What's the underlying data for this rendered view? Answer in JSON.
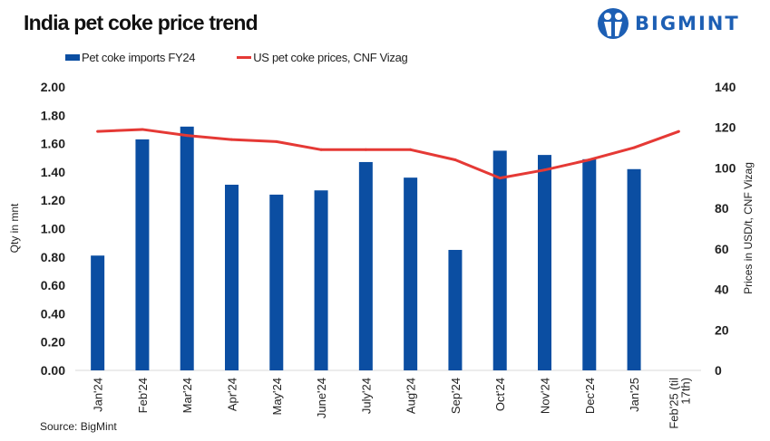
{
  "chart_data": {
    "type": "bar+line",
    "title": "India pet coke price trend",
    "categories": [
      "Jan'24",
      "Feb'24",
      "Mar'24",
      "Apr'24",
      "May'24",
      "June'24",
      "July'24",
      "Aug'24",
      "Sep'24",
      "Oct'24",
      "Nov'24",
      "Dec'24",
      "Jan'25",
      "Feb'25 (till 17th)"
    ],
    "series": [
      {
        "name": "Pet coke imports FY24",
        "type": "bar",
        "axis": "left",
        "color": "#0b4ea2",
        "values": [
          0.81,
          1.63,
          1.72,
          1.31,
          1.24,
          1.27,
          1.47,
          1.36,
          0.85,
          1.55,
          1.52,
          1.49,
          1.42,
          null
        ]
      },
      {
        "name": "US pet coke prices, CNF Vizag",
        "type": "line",
        "axis": "right",
        "color": "#e53935",
        "values": [
          118,
          119,
          116,
          114,
          113,
          109,
          109,
          109,
          104,
          95,
          99,
          104,
          110,
          118
        ]
      }
    ],
    "ylabel": "Qty in mnt",
    "ylabel_right": "Prices in USD/t, CNF Vizag",
    "ylim": [
      0,
      2
    ],
    "ylim_right": [
      0,
      140
    ],
    "yticks": [
      "0.00",
      "0.20",
      "0.40",
      "0.60",
      "0.80",
      "1.00",
      "1.20",
      "1.40",
      "1.60",
      "1.80",
      "2.00"
    ],
    "yticks_right": [
      "0",
      "20",
      "40",
      "60",
      "80",
      "100",
      "120",
      "140"
    ],
    "grid": false,
    "legend": "top"
  },
  "logo_text": "BIGMINT",
  "source": "Source:  BigMint"
}
